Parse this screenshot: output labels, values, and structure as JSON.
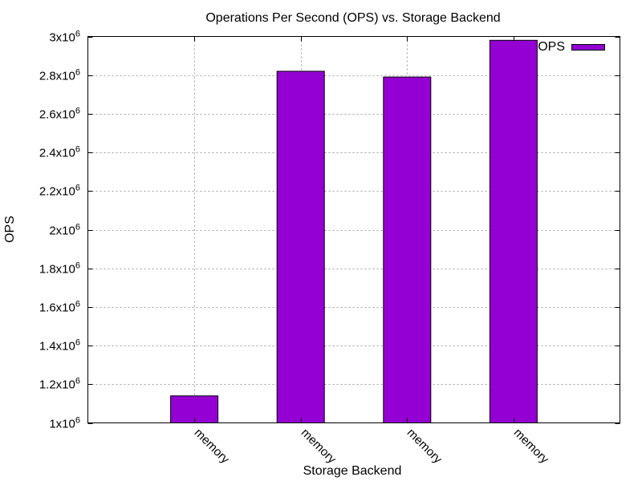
{
  "chart_data": {
    "type": "bar",
    "title": "Operations Per Second (OPS) vs. Storage Backend",
    "xlabel": "Storage Backend",
    "ylabel": "OPS",
    "categories": [
      "memory",
      "memory",
      "memory",
      "memory"
    ],
    "series": [
      {
        "name": "OPS",
        "color": "#9400d3",
        "values": [
          1140000,
          2820000,
          2790000,
          2980000
        ]
      }
    ],
    "ylim": [
      1000000,
      3000000
    ],
    "y_ticks": [
      {
        "value": 1000000,
        "mantissa": "1",
        "exponent": "6"
      },
      {
        "value": 1200000,
        "mantissa": "1.2",
        "exponent": "6"
      },
      {
        "value": 1400000,
        "mantissa": "1.4",
        "exponent": "6"
      },
      {
        "value": 1600000,
        "mantissa": "1.6",
        "exponent": "6"
      },
      {
        "value": 1800000,
        "mantissa": "1.8",
        "exponent": "6"
      },
      {
        "value": 2000000,
        "mantissa": "2",
        "exponent": "6"
      },
      {
        "value": 2200000,
        "mantissa": "2.2",
        "exponent": "6"
      },
      {
        "value": 2400000,
        "mantissa": "2.4",
        "exponent": "6"
      },
      {
        "value": 2600000,
        "mantissa": "2.6",
        "exponent": "6"
      },
      {
        "value": 2800000,
        "mantissa": "2.8",
        "exponent": "6"
      },
      {
        "value": 3000000,
        "mantissa": "3",
        "exponent": "6"
      }
    ],
    "grid": true,
    "legend_position": "top-right"
  }
}
